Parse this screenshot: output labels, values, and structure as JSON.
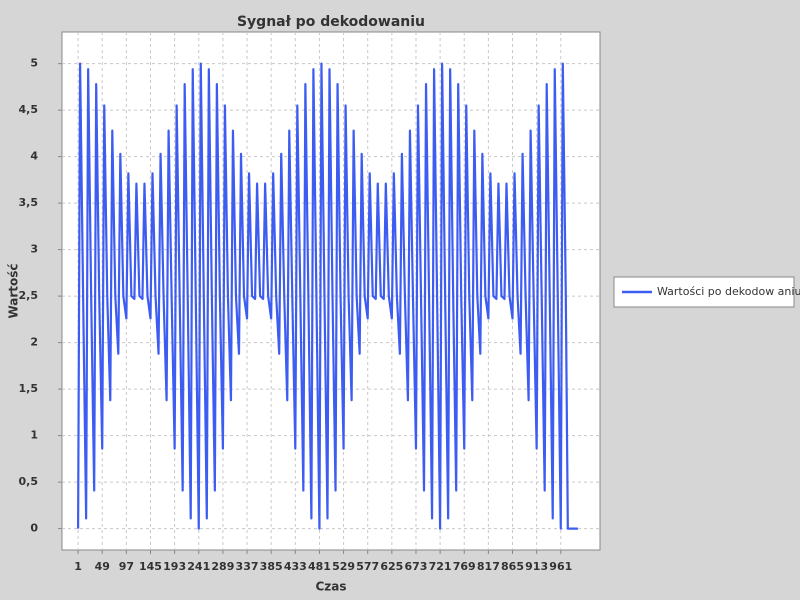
{
  "chart_data": {
    "type": "line",
    "title": "Sygnał po dekodowaniu",
    "x_label": "Czas",
    "y_label": "Wartość",
    "series": [
      {
        "name": "Wartości po dekodow aniu",
        "color": "#3d5cf2",
        "x": [
          1,
          5,
          11,
          17,
          21,
          27,
          33,
          37,
          43,
          49,
          53,
          59,
          65,
          69,
          75,
          81,
          85,
          91,
          97,
          101,
          107,
          113,
          117,
          123,
          129,
          133,
          139,
          145,
          149,
          155,
          161,
          165,
          171,
          177,
          181,
          187,
          193,
          197,
          203,
          209,
          213,
          219,
          225,
          229,
          235,
          241,
          245,
          251,
          257,
          261,
          267,
          273,
          277,
          283,
          289,
          293,
          299,
          305,
          309,
          315,
          321,
          325,
          331,
          337,
          341,
          347,
          353,
          357,
          363,
          369,
          373,
          379,
          385,
          389,
          395,
          401,
          405,
          411,
          417,
          421,
          427,
          433,
          437,
          443,
          449,
          453,
          459,
          465,
          469,
          475,
          481,
          485,
          491,
          497,
          501,
          507,
          513,
          517,
          523,
          529,
          533,
          539,
          545,
          549,
          555,
          561,
          565,
          571,
          577,
          581,
          587,
          593,
          597,
          603,
          609,
          613,
          619,
          625,
          629,
          635,
          641,
          645,
          651,
          657,
          661,
          667,
          673,
          677,
          683,
          689,
          693,
          699,
          705,
          709,
          715,
          721,
          725,
          731,
          737,
          741,
          747,
          753,
          757,
          763,
          769,
          773,
          779,
          785,
          789,
          795,
          801,
          805,
          811,
          817,
          821,
          827,
          833,
          837,
          843,
          849,
          853,
          859,
          865,
          869,
          875,
          881,
          885,
          891,
          897,
          901,
          907,
          913,
          917,
          923,
          929,
          933,
          939,
          945,
          949,
          955,
          961,
          965,
          971,
          975,
          995
        ],
        "values": [
          0,
          5,
          2.5,
          0.11,
          4.94,
          2.5,
          0.41,
          4.78,
          2.5,
          0.86,
          4.55,
          2.5,
          1.38,
          4.28,
          2.5,
          1.88,
          4.03,
          2.5,
          2.26,
          3.82,
          2.5,
          2.47,
          3.71,
          2.5,
          2.47,
          3.71,
          2.5,
          2.26,
          3.82,
          2.5,
          1.88,
          4.03,
          2.5,
          1.38,
          4.28,
          2.5,
          0.86,
          4.55,
          2.5,
          0.41,
          4.78,
          2.5,
          0.11,
          4.94,
          2.5,
          0,
          5,
          2.5,
          0.11,
          4.94,
          2.5,
          0.41,
          4.78,
          2.5,
          0.86,
          4.55,
          2.5,
          1.38,
          4.28,
          2.5,
          1.88,
          4.03,
          2.5,
          2.26,
          3.82,
          2.5,
          2.47,
          3.71,
          2.5,
          2.47,
          3.71,
          2.5,
          2.26,
          3.82,
          2.5,
          1.88,
          4.03,
          2.5,
          1.38,
          4.28,
          2.5,
          0.86,
          4.55,
          2.5,
          0.41,
          4.78,
          2.5,
          0.11,
          4.94,
          2.5,
          0,
          5,
          2.5,
          0.11,
          4.94,
          2.5,
          0.41,
          4.78,
          2.5,
          0.86,
          4.55,
          2.5,
          1.38,
          4.28,
          2.5,
          1.88,
          4.03,
          2.5,
          2.26,
          3.82,
          2.5,
          2.47,
          3.71,
          2.5,
          2.47,
          3.71,
          2.5,
          2.26,
          3.82,
          2.5,
          1.88,
          4.03,
          2.5,
          1.38,
          4.28,
          2.5,
          0.86,
          4.55,
          2.5,
          0.41,
          4.78,
          2.5,
          0.11,
          4.94,
          2.5,
          0,
          5,
          2.5,
          0.11,
          4.94,
          2.5,
          0.41,
          4.78,
          2.5,
          0.86,
          4.55,
          2.5,
          1.38,
          4.28,
          2.5,
          1.88,
          4.03,
          2.5,
          2.26,
          3.82,
          2.5,
          2.47,
          3.71,
          2.5,
          2.47,
          3.71,
          2.5,
          2.26,
          3.82,
          2.5,
          1.88,
          4.03,
          2.5,
          1.38,
          4.28,
          2.5,
          0.86,
          4.55,
          2.5,
          0.41,
          4.78,
          2.5,
          0.11,
          4.94,
          2.5,
          0,
          5,
          2.5,
          0,
          0
        ]
      }
    ],
    "xlim": [
      -31,
      1039
    ],
    "xticks": [
      1,
      49,
      97,
      145,
      193,
      241,
      289,
      337,
      385,
      433,
      481,
      529,
      577,
      625,
      673,
      721,
      769,
      817,
      865,
      913,
      961
    ],
    "ylim": [
      -0.23,
      5.34
    ],
    "yticks": [
      0,
      {
        "value": 0.5,
        "label": "0,5"
      },
      1,
      {
        "value": 1.5,
        "label": "1,5"
      },
      2,
      {
        "value": 2.5,
        "label": "2,5"
      },
      3,
      {
        "value": 3.5,
        "label": "3,5"
      },
      4,
      {
        "value": 4.5,
        "label": "4,5"
      },
      5
    ],
    "grid": true,
    "legend": "right"
  }
}
